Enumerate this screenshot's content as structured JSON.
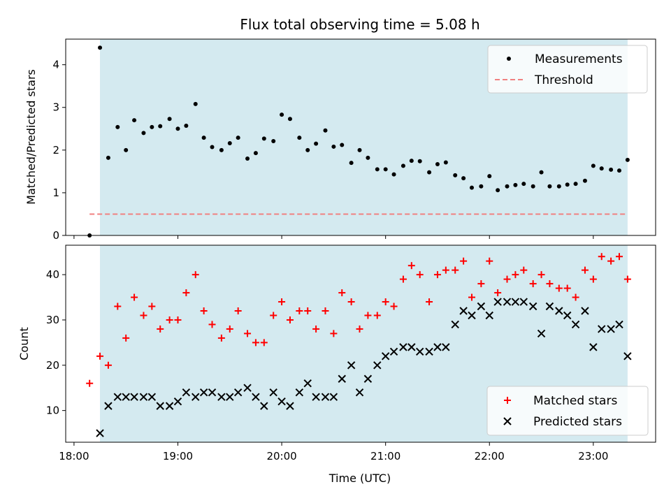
{
  "chart_data": [
    {
      "type": "scatter",
      "title": "Flux total observing time = 5.08 h",
      "xlabel": "",
      "ylabel": "Matched/Predicted stars",
      "ylim": [
        0,
        4.6
      ],
      "yticks": [
        0,
        1,
        2,
        3,
        4
      ],
      "x_range_hours": [
        17.92,
        23.6
      ],
      "shaded_span": [
        18.25,
        23.33
      ],
      "shade_color": "#d4eaf0",
      "legend_position": "top-right",
      "threshold": {
        "name": "Threshold",
        "value": 0.5,
        "x_range": [
          18.15,
          23.33
        ],
        "color": "#f08080"
      },
      "series": [
        {
          "name": "Measurements",
          "color": "#000000",
          "marker": "dot",
          "points": [
            [
              18.15,
              0.0
            ],
            [
              18.25,
              4.4
            ],
            [
              18.33,
              1.82
            ],
            [
              18.42,
              2.54
            ],
            [
              18.5,
              2.0
            ],
            [
              18.58,
              2.7
            ],
            [
              18.67,
              2.4
            ],
            [
              18.75,
              2.54
            ],
            [
              18.83,
              2.56
            ],
            [
              18.92,
              2.73
            ],
            [
              19.0,
              2.5
            ],
            [
              19.08,
              2.57
            ],
            [
              19.17,
              3.08
            ],
            [
              19.25,
              2.29
            ],
            [
              19.33,
              2.07
            ],
            [
              19.42,
              2.0
            ],
            [
              19.5,
              2.16
            ],
            [
              19.58,
              2.29
            ],
            [
              19.67,
              1.8
            ],
            [
              19.75,
              1.93
            ],
            [
              19.83,
              2.27
            ],
            [
              19.92,
              2.21
            ],
            [
              20.0,
              2.83
            ],
            [
              20.08,
              2.73
            ],
            [
              20.17,
              2.29
            ],
            [
              20.25,
              2.0
            ],
            [
              20.33,
              2.15
            ],
            [
              20.42,
              2.46
            ],
            [
              20.5,
              2.08
            ],
            [
              20.58,
              2.12
            ],
            [
              20.67,
              1.7
            ],
            [
              20.75,
              2.0
            ],
            [
              20.83,
              1.82
            ],
            [
              20.92,
              1.55
            ],
            [
              21.0,
              1.55
            ],
            [
              21.08,
              1.43
            ],
            [
              21.17,
              1.63
            ],
            [
              21.25,
              1.75
            ],
            [
              21.33,
              1.74
            ],
            [
              21.42,
              1.48
            ],
            [
              21.5,
              1.67
            ],
            [
              21.58,
              1.71
            ],
            [
              21.67,
              1.41
            ],
            [
              21.75,
              1.34
            ],
            [
              21.83,
              1.12
            ],
            [
              21.92,
              1.15
            ],
            [
              22.0,
              1.39
            ],
            [
              22.08,
              1.06
            ],
            [
              22.17,
              1.15
            ],
            [
              22.25,
              1.18
            ],
            [
              22.33,
              1.21
            ],
            [
              22.42,
              1.15
            ],
            [
              22.5,
              1.48
            ],
            [
              22.58,
              1.15
            ],
            [
              22.67,
              1.15
            ],
            [
              22.75,
              1.19
            ],
            [
              22.83,
              1.21
            ],
            [
              22.92,
              1.28
            ],
            [
              23.0,
              1.63
            ],
            [
              23.08,
              1.57
            ],
            [
              23.17,
              1.54
            ],
            [
              23.25,
              1.52
            ],
            [
              23.33,
              1.77
            ]
          ]
        }
      ]
    },
    {
      "type": "scatter",
      "title": "",
      "xlabel": "Time (UTC)",
      "ylabel": "Count",
      "ylim": [
        3,
        46.5
      ],
      "yticks": [
        10,
        20,
        30,
        40
      ],
      "x_range_hours": [
        17.92,
        23.6
      ],
      "xticks": [
        "18:00",
        "19:00",
        "20:00",
        "21:00",
        "22:00",
        "23:00"
      ],
      "xtick_hours": [
        18,
        19,
        20,
        21,
        22,
        23
      ],
      "shaded_span": [
        18.25,
        23.33
      ],
      "shade_color": "#d4eaf0",
      "legend_position": "bottom-right",
      "series": [
        {
          "name": "Matched stars",
          "color": "#ff0000",
          "marker": "plus",
          "points": [
            [
              18.15,
              16
            ],
            [
              18.25,
              22
            ],
            [
              18.33,
              20
            ],
            [
              18.42,
              33
            ],
            [
              18.5,
              26
            ],
            [
              18.58,
              35
            ],
            [
              18.67,
              31
            ],
            [
              18.75,
              33
            ],
            [
              18.83,
              28
            ],
            [
              18.92,
              30
            ],
            [
              19.0,
              30
            ],
            [
              19.08,
              36
            ],
            [
              19.17,
              40
            ],
            [
              19.25,
              32
            ],
            [
              19.33,
              29
            ],
            [
              19.42,
              26
            ],
            [
              19.5,
              28
            ],
            [
              19.58,
              32
            ],
            [
              19.67,
              27
            ],
            [
              19.75,
              25
            ],
            [
              19.83,
              25
            ],
            [
              19.92,
              31
            ],
            [
              20.0,
              34
            ],
            [
              20.08,
              30
            ],
            [
              20.17,
              32
            ],
            [
              20.25,
              32
            ],
            [
              20.33,
              28
            ],
            [
              20.42,
              32
            ],
            [
              20.5,
              27
            ],
            [
              20.58,
              36
            ],
            [
              20.67,
              34
            ],
            [
              20.75,
              28
            ],
            [
              20.83,
              31
            ],
            [
              20.92,
              31
            ],
            [
              21.0,
              34
            ],
            [
              21.08,
              33
            ],
            [
              21.17,
              39
            ],
            [
              21.25,
              42
            ],
            [
              21.33,
              40
            ],
            [
              21.42,
              34
            ],
            [
              21.5,
              40
            ],
            [
              21.58,
              41
            ],
            [
              21.67,
              41
            ],
            [
              21.75,
              43
            ],
            [
              21.83,
              35
            ],
            [
              21.92,
              38
            ],
            [
              22.0,
              43
            ],
            [
              22.08,
              36
            ],
            [
              22.17,
              39
            ],
            [
              22.25,
              40
            ],
            [
              22.33,
              41
            ],
            [
              22.42,
              38
            ],
            [
              22.5,
              40
            ],
            [
              22.58,
              38
            ],
            [
              22.67,
              37
            ],
            [
              22.75,
              37
            ],
            [
              22.83,
              35
            ],
            [
              22.92,
              41
            ],
            [
              23.0,
              39
            ],
            [
              23.08,
              44
            ],
            [
              23.17,
              43
            ],
            [
              23.25,
              44
            ],
            [
              23.33,
              39
            ]
          ]
        },
        {
          "name": "Predicted stars",
          "color": "#000000",
          "marker": "x",
          "points": [
            [
              18.25,
              5
            ],
            [
              18.33,
              11
            ],
            [
              18.42,
              13
            ],
            [
              18.5,
              13
            ],
            [
              18.58,
              13
            ],
            [
              18.67,
              13
            ],
            [
              18.75,
              13
            ],
            [
              18.83,
              11
            ],
            [
              18.92,
              11
            ],
            [
              19.0,
              12
            ],
            [
              19.08,
              14
            ],
            [
              19.17,
              13
            ],
            [
              19.25,
              14
            ],
            [
              19.33,
              14
            ],
            [
              19.42,
              13
            ],
            [
              19.5,
              13
            ],
            [
              19.58,
              14
            ],
            [
              19.67,
              15
            ],
            [
              19.75,
              13
            ],
            [
              19.83,
              11
            ],
            [
              19.92,
              14
            ],
            [
              20.0,
              12
            ],
            [
              20.08,
              11
            ],
            [
              20.17,
              14
            ],
            [
              20.25,
              16
            ],
            [
              20.33,
              13
            ],
            [
              20.42,
              13
            ],
            [
              20.5,
              13
            ],
            [
              20.58,
              17
            ],
            [
              20.67,
              20
            ],
            [
              20.75,
              14
            ],
            [
              20.83,
              17
            ],
            [
              20.92,
              20
            ],
            [
              21.0,
              22
            ],
            [
              21.08,
              23
            ],
            [
              21.17,
              24
            ],
            [
              21.25,
              24
            ],
            [
              21.33,
              23
            ],
            [
              21.42,
              23
            ],
            [
              21.5,
              24
            ],
            [
              21.58,
              24
            ],
            [
              21.67,
              29
            ],
            [
              21.75,
              32
            ],
            [
              21.83,
              31
            ],
            [
              21.92,
              33
            ],
            [
              22.0,
              31
            ],
            [
              22.08,
              34
            ],
            [
              22.17,
              34
            ],
            [
              22.25,
              34
            ],
            [
              22.33,
              34
            ],
            [
              22.42,
              33
            ],
            [
              22.5,
              27
            ],
            [
              22.58,
              33
            ],
            [
              22.67,
              32
            ],
            [
              22.75,
              31
            ],
            [
              22.83,
              29
            ],
            [
              22.92,
              32
            ],
            [
              23.0,
              24
            ],
            [
              23.08,
              28
            ],
            [
              23.17,
              28
            ],
            [
              23.25,
              29
            ],
            [
              23.33,
              22
            ]
          ]
        }
      ]
    }
  ]
}
